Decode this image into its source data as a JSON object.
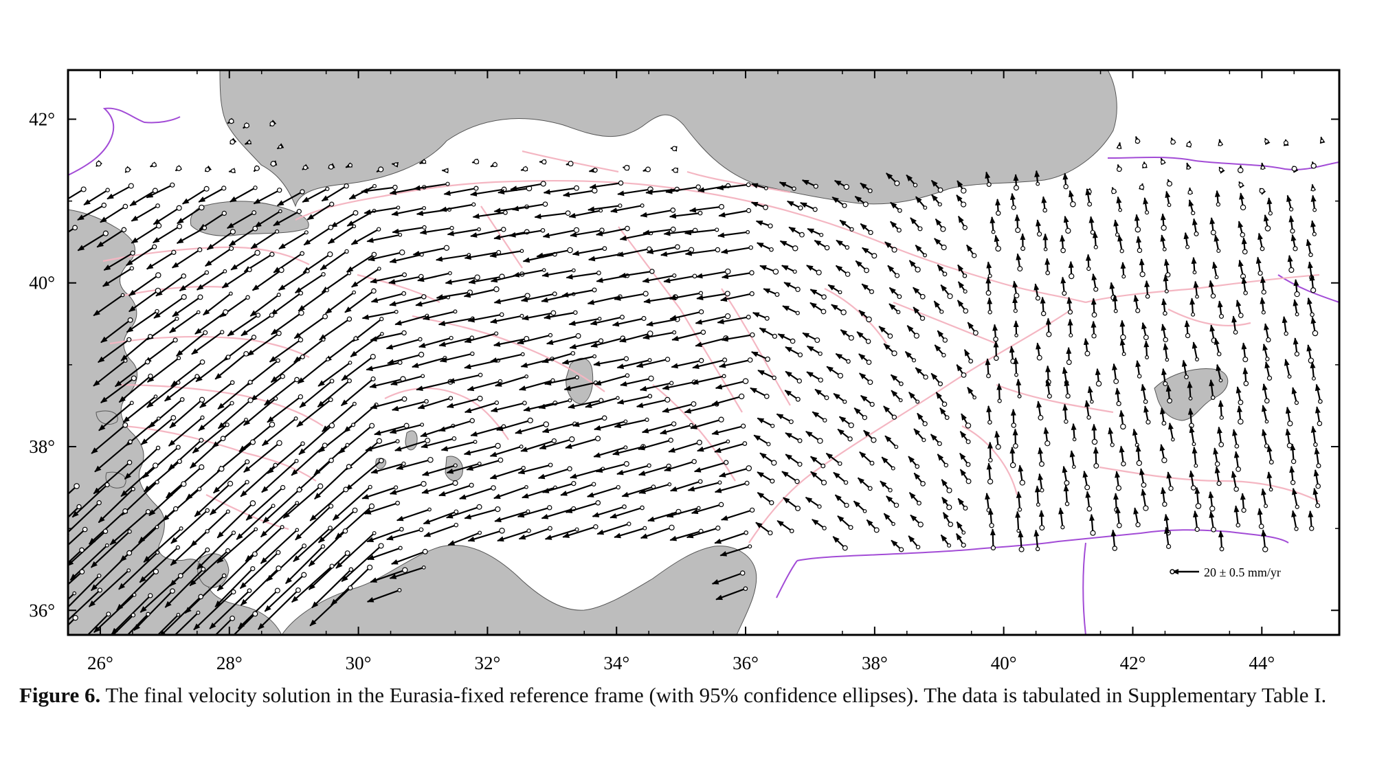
{
  "map": {
    "lon_ticks": [
      "26°",
      "28°",
      "30°",
      "32°",
      "34°",
      "36°",
      "38°",
      "40°",
      "42°",
      "44°"
    ],
    "lat_ticks": [
      "36°",
      "38°",
      "40°",
      "42°"
    ],
    "lon_values": [
      26,
      28,
      30,
      32,
      34,
      36,
      38,
      40,
      42,
      44
    ],
    "lat_values": [
      36,
      38,
      40,
      42
    ],
    "extent": {
      "lon": [
        25.5,
        45.2
      ],
      "lat": [
        35.7,
        42.6
      ]
    },
    "legend": {
      "label": "20 ± 0.5 mm/yr",
      "velocity_mm_yr": 20
    },
    "colors": {
      "land": "#ffffff",
      "sea": "#bdbdbd",
      "faults": "#f4b6c2",
      "borders": "#a24bd6",
      "vectors": "#000000"
    }
  },
  "caption": {
    "figure_label": "Figure 6.",
    "text": "The final velocity solution in the Eurasia-fixed reference frame (with 95% confidence ellipses). The data is tabulated in Supplementary Table I."
  }
}
